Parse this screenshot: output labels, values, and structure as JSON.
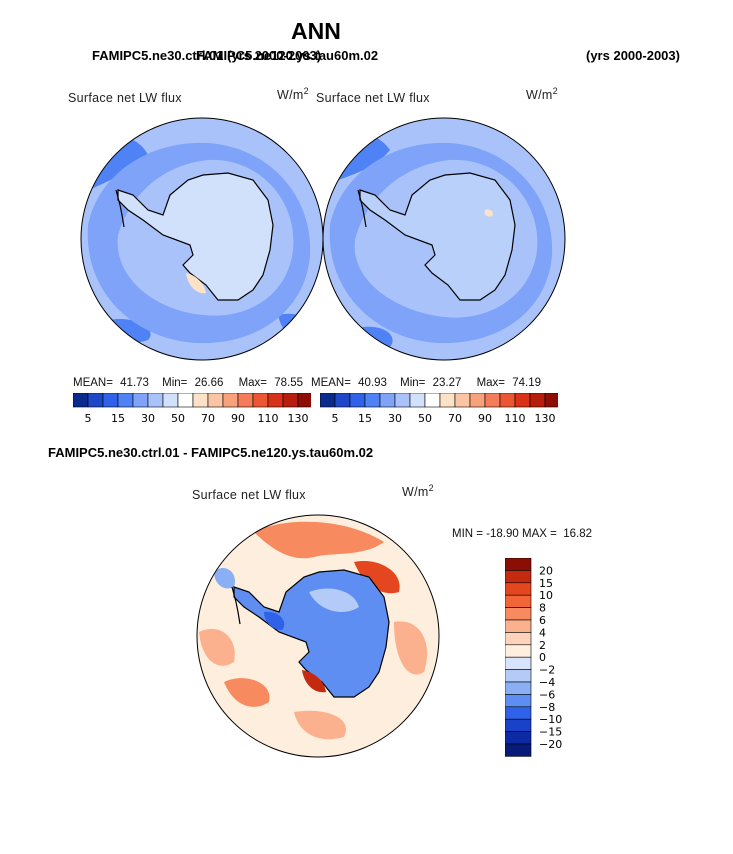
{
  "page": {
    "title": "ANN",
    "overlap_title_a": "FAMIPC5.ne30.ctrl.01 (yrs 2000-2003)",
    "overlap_title_b": "FAMIPC5.ne120.ys.tau60m.02",
    "years_label": "(yrs 2000-2003)",
    "diff_title": "FAMIPC5.ne30.ctrl.01 - FAMIPC5.ne120.ys.tau60m.02"
  },
  "chart_data": [
    {
      "type": "heatmap",
      "name": "ctrl-panel",
      "title": "Surface net LW flux",
      "units": "W/m",
      "units_sup": "2",
      "stats": {
        "mean": "41.73",
        "min": "26.66",
        "max": "78.55"
      },
      "mean_label": "MEAN=",
      "min_label": "Min=",
      "max_label": "Max=",
      "colorbar_levels": [
        "5",
        "15",
        "30",
        "50",
        "70",
        "90",
        "110",
        "130"
      ],
      "colorbar_colors": [
        "#0a2a8e",
        "#1f48c8",
        "#2f62e8",
        "#4f82f5",
        "#7ea3f8",
        "#a9c3fa",
        "#d2e1fb",
        "#ffffff",
        "#fde2c8",
        "#fbc5a4",
        "#f8a27c",
        "#f47c58",
        "#ec5633",
        "#d93218",
        "#b81c0c",
        "#8e0e05"
      ],
      "background": "#a9c3fa",
      "continent": "#d2e1fb"
    },
    {
      "type": "heatmap",
      "name": "test-panel",
      "title": "Surface net LW flux",
      "units": "W/m",
      "units_sup": "2",
      "stats": {
        "mean": "40.93",
        "min": "23.27",
        "max": "74.19"
      },
      "mean_label": "MEAN=",
      "min_label": "Min=",
      "max_label": "Max=",
      "colorbar_levels": [
        "5",
        "15",
        "30",
        "50",
        "70",
        "90",
        "110",
        "130"
      ],
      "colorbar_colors": [
        "#0a2a8e",
        "#1f48c8",
        "#2f62e8",
        "#4f82f5",
        "#7ea3f8",
        "#a9c3fa",
        "#d2e1fb",
        "#ffffff",
        "#fde2c8",
        "#fbc5a4",
        "#f8a27c",
        "#f47c58",
        "#ec5633",
        "#d93218",
        "#b81c0c",
        "#8e0e05"
      ],
      "background": "#a9c3fa",
      "continent": "#d2e1fb"
    },
    {
      "type": "heatmap",
      "name": "diff-panel",
      "title": "Surface net LW flux",
      "units": "W/m",
      "units_sup": "2",
      "min_max_text": "MIN = -18.90 MAX =  16.82",
      "colorbar_levels": [
        "20",
        "15",
        "10",
        "8",
        "6",
        "4",
        "2",
        "0",
        "−2",
        "−4",
        "−6",
        "−8",
        "−10",
        "−15",
        "−20"
      ],
      "colorbar_colors": [
        "#8b0e05",
        "#c42a0f",
        "#e4461f",
        "#f26537",
        "#f78a5e",
        "#fbb18e",
        "#fdd3bb",
        "#fdeede",
        "#d8e4fb",
        "#b4cbf8",
        "#8aaff5",
        "#5e8ef1",
        "#2f62e8",
        "#1a42c9",
        "#0c2aa3",
        "#061c78"
      ],
      "background": "#fdeede",
      "continent": "#3d6ce6"
    }
  ]
}
